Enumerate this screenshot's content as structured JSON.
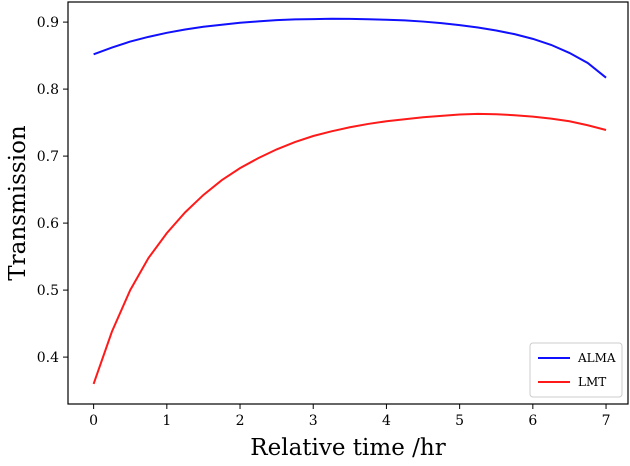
{
  "chart_data": {
    "type": "line",
    "title": "",
    "xlabel": "Relative time /hr",
    "ylabel": "Transmission",
    "xlim": [
      -0.35,
      7.3
    ],
    "ylim": [
      0.33,
      0.93
    ],
    "xticks": [
      0,
      1,
      2,
      3,
      4,
      5,
      6,
      7
    ],
    "yticks": [
      0.4,
      0.5,
      0.6,
      0.7,
      0.8,
      0.9
    ],
    "grid": false,
    "legend_position": "bottom-right",
    "x": [
      0,
      0.25,
      0.5,
      0.75,
      1,
      1.25,
      1.5,
      1.75,
      2,
      2.25,
      2.5,
      2.75,
      3,
      3.25,
      3.5,
      3.75,
      4,
      4.25,
      4.5,
      4.75,
      5,
      5.25,
      5.5,
      5.75,
      6,
      6.25,
      6.5,
      6.75,
      7
    ],
    "series": [
      {
        "name": "ALMA",
        "color": "#1010ff",
        "values": [
          0.852,
          0.862,
          0.871,
          0.878,
          0.884,
          0.889,
          0.893,
          0.896,
          0.899,
          0.901,
          0.903,
          0.904,
          0.9045,
          0.905,
          0.9048,
          0.9042,
          0.9035,
          0.9025,
          0.9008,
          0.8985,
          0.8955,
          0.892,
          0.8875,
          0.882,
          0.875,
          0.866,
          0.854,
          0.839,
          0.817
        ]
      },
      {
        "name": "LMT",
        "color": "#ff1a1a",
        "values": [
          0.36,
          0.438,
          0.5,
          0.548,
          0.585,
          0.616,
          0.642,
          0.664,
          0.682,
          0.697,
          0.71,
          0.721,
          0.73,
          0.737,
          0.743,
          0.748,
          0.752,
          0.755,
          0.758,
          0.76,
          0.762,
          0.763,
          0.7625,
          0.761,
          0.759,
          0.756,
          0.752,
          0.746,
          0.739
        ]
      }
    ]
  }
}
